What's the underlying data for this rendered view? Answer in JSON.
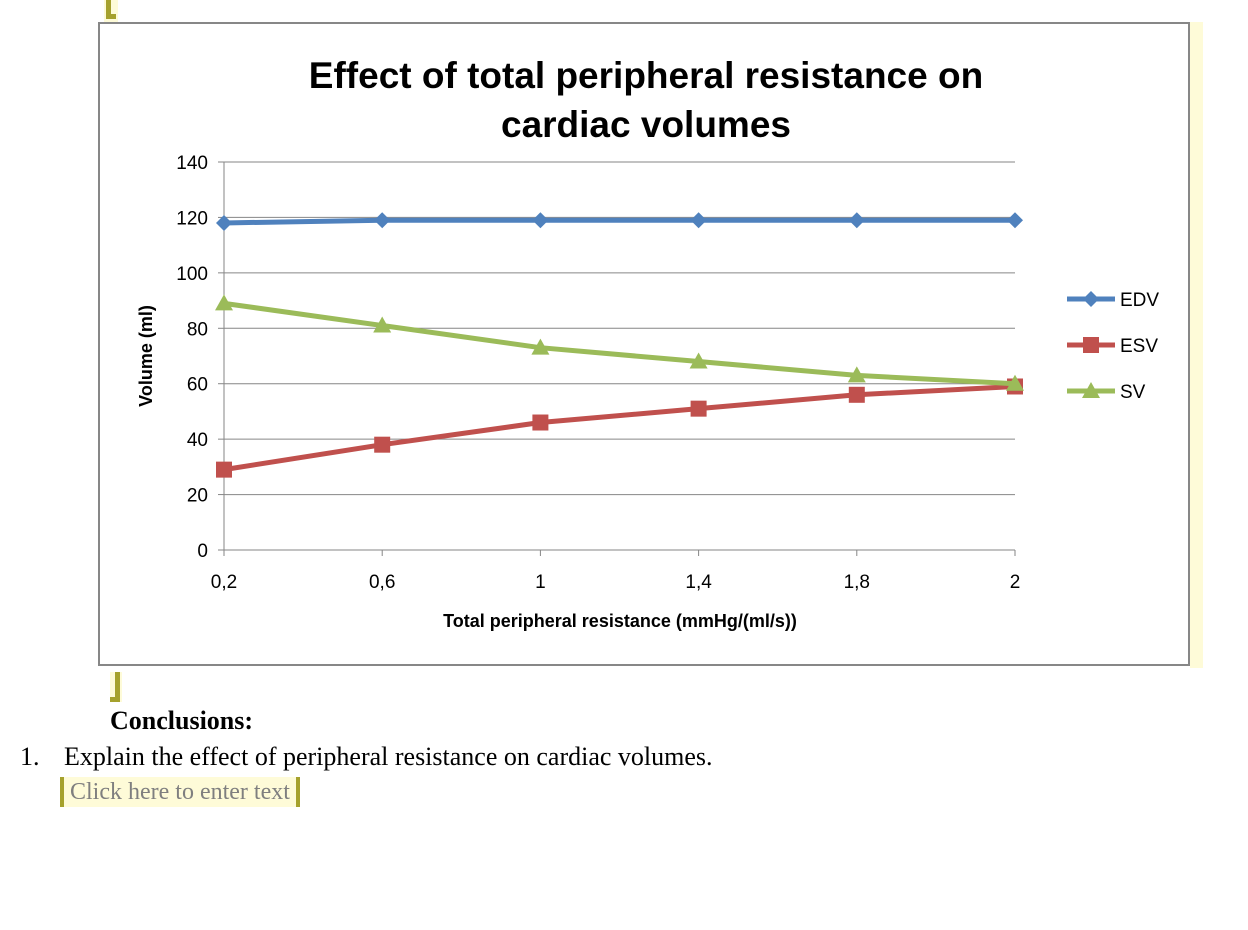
{
  "chart_data": {
    "type": "line",
    "title": "Effect of total peripheral resistance on cardiac volumes",
    "xlabel": "Total peripheral resistance (mmHg/(ml/s))",
    "ylabel": "Volume (ml)",
    "categories": [
      "0,2",
      "0,6",
      "1",
      "1,4",
      "1,8",
      "2"
    ],
    "ylim": [
      0,
      140
    ],
    "yticks": [
      0,
      20,
      40,
      60,
      80,
      100,
      120,
      140
    ],
    "grid": true,
    "legend": "right",
    "series": [
      {
        "name": "EDV",
        "color": "#4f81bd",
        "marker": "diamond",
        "values": [
          118,
          119,
          119,
          119,
          119,
          119
        ]
      },
      {
        "name": "ESV",
        "color": "#c0504d",
        "marker": "square",
        "values": [
          29,
          38,
          46,
          51,
          56,
          59
        ]
      },
      {
        "name": "SV",
        "color": "#9bbb59",
        "marker": "triangle",
        "values": [
          89,
          81,
          73,
          68,
          63,
          60
        ]
      }
    ]
  },
  "document": {
    "conclusions_heading": "Conclusions:",
    "question_number": "1.",
    "question_text": "Explain the effect of peripheral resistance on cardiac volumes.",
    "answer_placeholder": "Click here to enter text"
  }
}
